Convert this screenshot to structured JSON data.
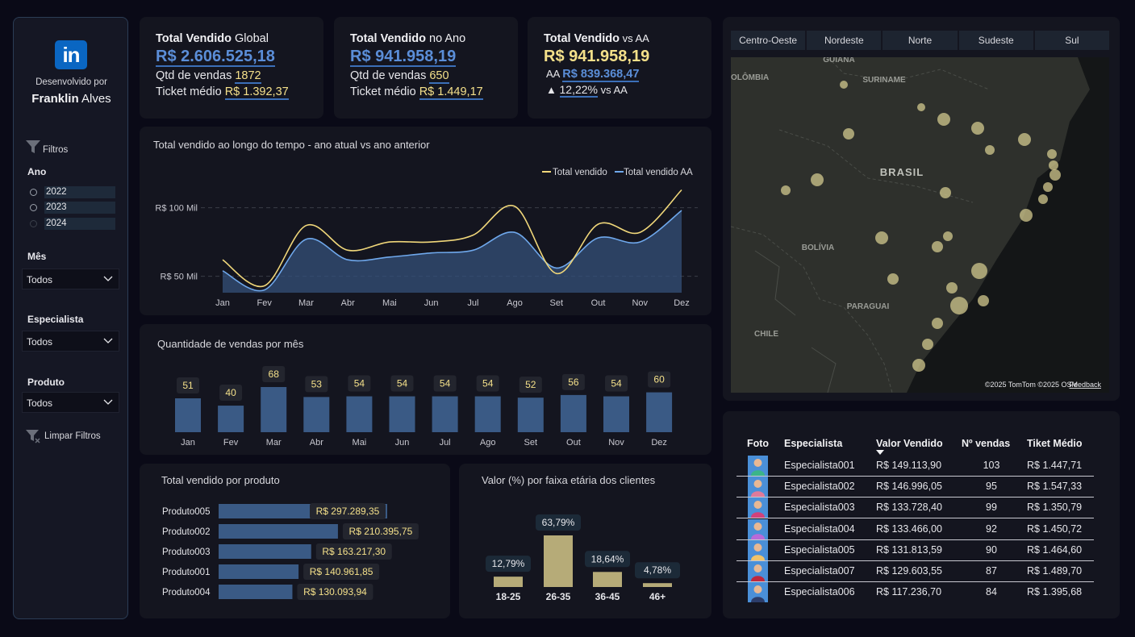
{
  "sidebar": {
    "developed_by": "Desenvolvido por",
    "author_first": "Franklin",
    "author_last": " Alves",
    "filters_label": "Filtros",
    "year_label": "Ano",
    "years": [
      "2022",
      "2023",
      "2024"
    ],
    "month_label": "Mês",
    "month_value": "Todos",
    "specialist_label": "Especialista",
    "specialist_value": "Todos",
    "product_label": "Produto",
    "product_value": "Todos",
    "clear_filters": "Limpar Filtros"
  },
  "kpi_global": {
    "title_bold": "Total Vendido",
    "title_rest": " Global",
    "value": "R$ 2.606.525,18",
    "qty_label": "Qtd de vendas ",
    "qty_value": "1872",
    "ticket_label": "Ticket médio ",
    "ticket_value": "R$ 1.392,37"
  },
  "kpi_year": {
    "title_bold": "Total Vendido",
    "title_rest": " no Ano",
    "value": "R$ 941.958,19",
    "qty_label": "Qtd de vendas ",
    "qty_value": "650",
    "ticket_label": "Ticket médio ",
    "ticket_value": "R$ 1.449,17"
  },
  "kpi_vs": {
    "title_bold": "Total Vendido",
    "title_rest": " vs AA",
    "value": "R$ 941.958,19",
    "aa_label": "AA ",
    "aa_value": "R$ 839.368,47",
    "growth_arrow": "▲",
    "growth_value": "12,22%",
    "growth_label": " vs AA"
  },
  "colors": {
    "current": "#f0d77a",
    "previous": "#6fa8ec",
    "bar": "#3a5a85",
    "age_bar": "#b6ab78"
  },
  "line_chart": {
    "title": "Total vendido ao longo do tempo - ano atual vs ano anterior",
    "legend": [
      "Total vendido",
      "Total vendido AA"
    ]
  },
  "qty_chart": {
    "title": "Quantidade de vendas por mês"
  },
  "product_chart": {
    "title": "Total vendido por produto"
  },
  "age_chart": {
    "title": "Valor (%) por faixa etária dos clientes"
  },
  "chart_data": [
    {
      "type": "area",
      "title": "Total vendido ao longo do tempo - ano atual vs ano anterior",
      "categories": [
        "Jan",
        "Fev",
        "Mar",
        "Abr",
        "Mai",
        "Jun",
        "Jul",
        "Ago",
        "Set",
        "Out",
        "Nov",
        "Dez"
      ],
      "y_ticks": [
        "R$ 50 Mil",
        "R$ 100 Mil"
      ],
      "series": [
        {
          "name": "Total vendido",
          "values": [
            62000,
            43000,
            87000,
            69000,
            75000,
            75000,
            80000,
            101000,
            52000,
            88000,
            82000,
            113000
          ]
        },
        {
          "name": "Total vendido AA",
          "values": [
            54000,
            40000,
            77000,
            62000,
            64000,
            67000,
            69000,
            82000,
            56000,
            78000,
            75000,
            98000
          ]
        }
      ],
      "ylim": [
        38000,
        118000
      ],
      "legend": "top-right",
      "grid": true
    },
    {
      "type": "bar",
      "title": "Quantidade de vendas por mês",
      "categories": [
        "Jan",
        "Fev",
        "Mar",
        "Abr",
        "Mai",
        "Jun",
        "Jul",
        "Ago",
        "Set",
        "Out",
        "Nov",
        "Dez"
      ],
      "values": [
        51,
        40,
        68,
        53,
        54,
        54,
        54,
        54,
        52,
        56,
        54,
        60
      ],
      "labels": [
        "51",
        "40",
        "68",
        "53",
        "54",
        "54",
        "54",
        "54",
        "52",
        "56",
        "54",
        "60"
      ],
      "ylim": [
        0,
        68
      ]
    },
    {
      "type": "bar",
      "orientation": "horizontal",
      "title": "Total vendido por produto",
      "categories": [
        "Produto005",
        "Produto002",
        "Produto003",
        "Produto001",
        "Produto004"
      ],
      "values": [
        297289.35,
        210395.75,
        163217.3,
        140961.85,
        130093.94
      ],
      "labels": [
        "R$ 297.289,35",
        "R$ 210.395,75",
        "R$ 163.217,30",
        "R$ 140.961,85",
        "R$ 130.093,94"
      ]
    },
    {
      "type": "bar",
      "title": "Valor (%) por faixa etária dos clientes",
      "categories": [
        "18-25",
        "26-35",
        "36-45",
        "46+"
      ],
      "values": [
        12.79,
        63.79,
        18.64,
        4.78
      ],
      "labels": [
        "12,79%",
        "63,79%",
        "18,64%",
        "4,78%"
      ],
      "ylim": [
        0,
        63.79
      ]
    }
  ],
  "map": {
    "tabs": [
      "Centro-Oeste",
      "Nordeste",
      "Norte",
      "Sudeste",
      "Sul"
    ],
    "labels": [
      "GUIANA",
      "SURINAME",
      "OLÔMBIA",
      "BRASIL",
      "BOLÍVIA",
      "PARAGUAI",
      "CHILE"
    ],
    "attribution": "©2025 TomTom  ©2025 OSM",
    "feedback": "Feedback"
  },
  "table": {
    "headers": [
      "Foto",
      "Especialista",
      "Valor Vendido",
      "Nº vendas",
      "Tiket Médio"
    ],
    "rows": [
      {
        "name": "Especialista001",
        "value": "R$ 149.113,90",
        "count": "103",
        "ticket": "R$ 1.447,71",
        "avatar_color": "#3bb58a"
      },
      {
        "name": "Especialista002",
        "value": "R$ 146.996,05",
        "count": "95",
        "ticket": "R$ 1.547,33",
        "avatar_color": "#e07a9a"
      },
      {
        "name": "Especialista003",
        "value": "R$ 133.728,40",
        "count": "99",
        "ticket": "R$ 1.350,79",
        "avatar_color": "#d1417a"
      },
      {
        "name": "Especialista004",
        "value": "R$ 133.466,00",
        "count": "92",
        "ticket": "R$ 1.450,72",
        "avatar_color": "#b86ad8"
      },
      {
        "name": "Especialista005",
        "value": "R$ 131.813,59",
        "count": "90",
        "ticket": "R$ 1.464,60",
        "avatar_color": "#f0c36a"
      },
      {
        "name": "Especialista007",
        "value": "R$ 129.603,55",
        "count": "87",
        "ticket": "R$ 1.489,70",
        "avatar_color": "#c0283d"
      },
      {
        "name": "Especialista006",
        "value": "R$ 117.236,70",
        "count": "84",
        "ticket": "R$ 1.395,68",
        "avatar_color": "#2c3d6a"
      }
    ]
  }
}
